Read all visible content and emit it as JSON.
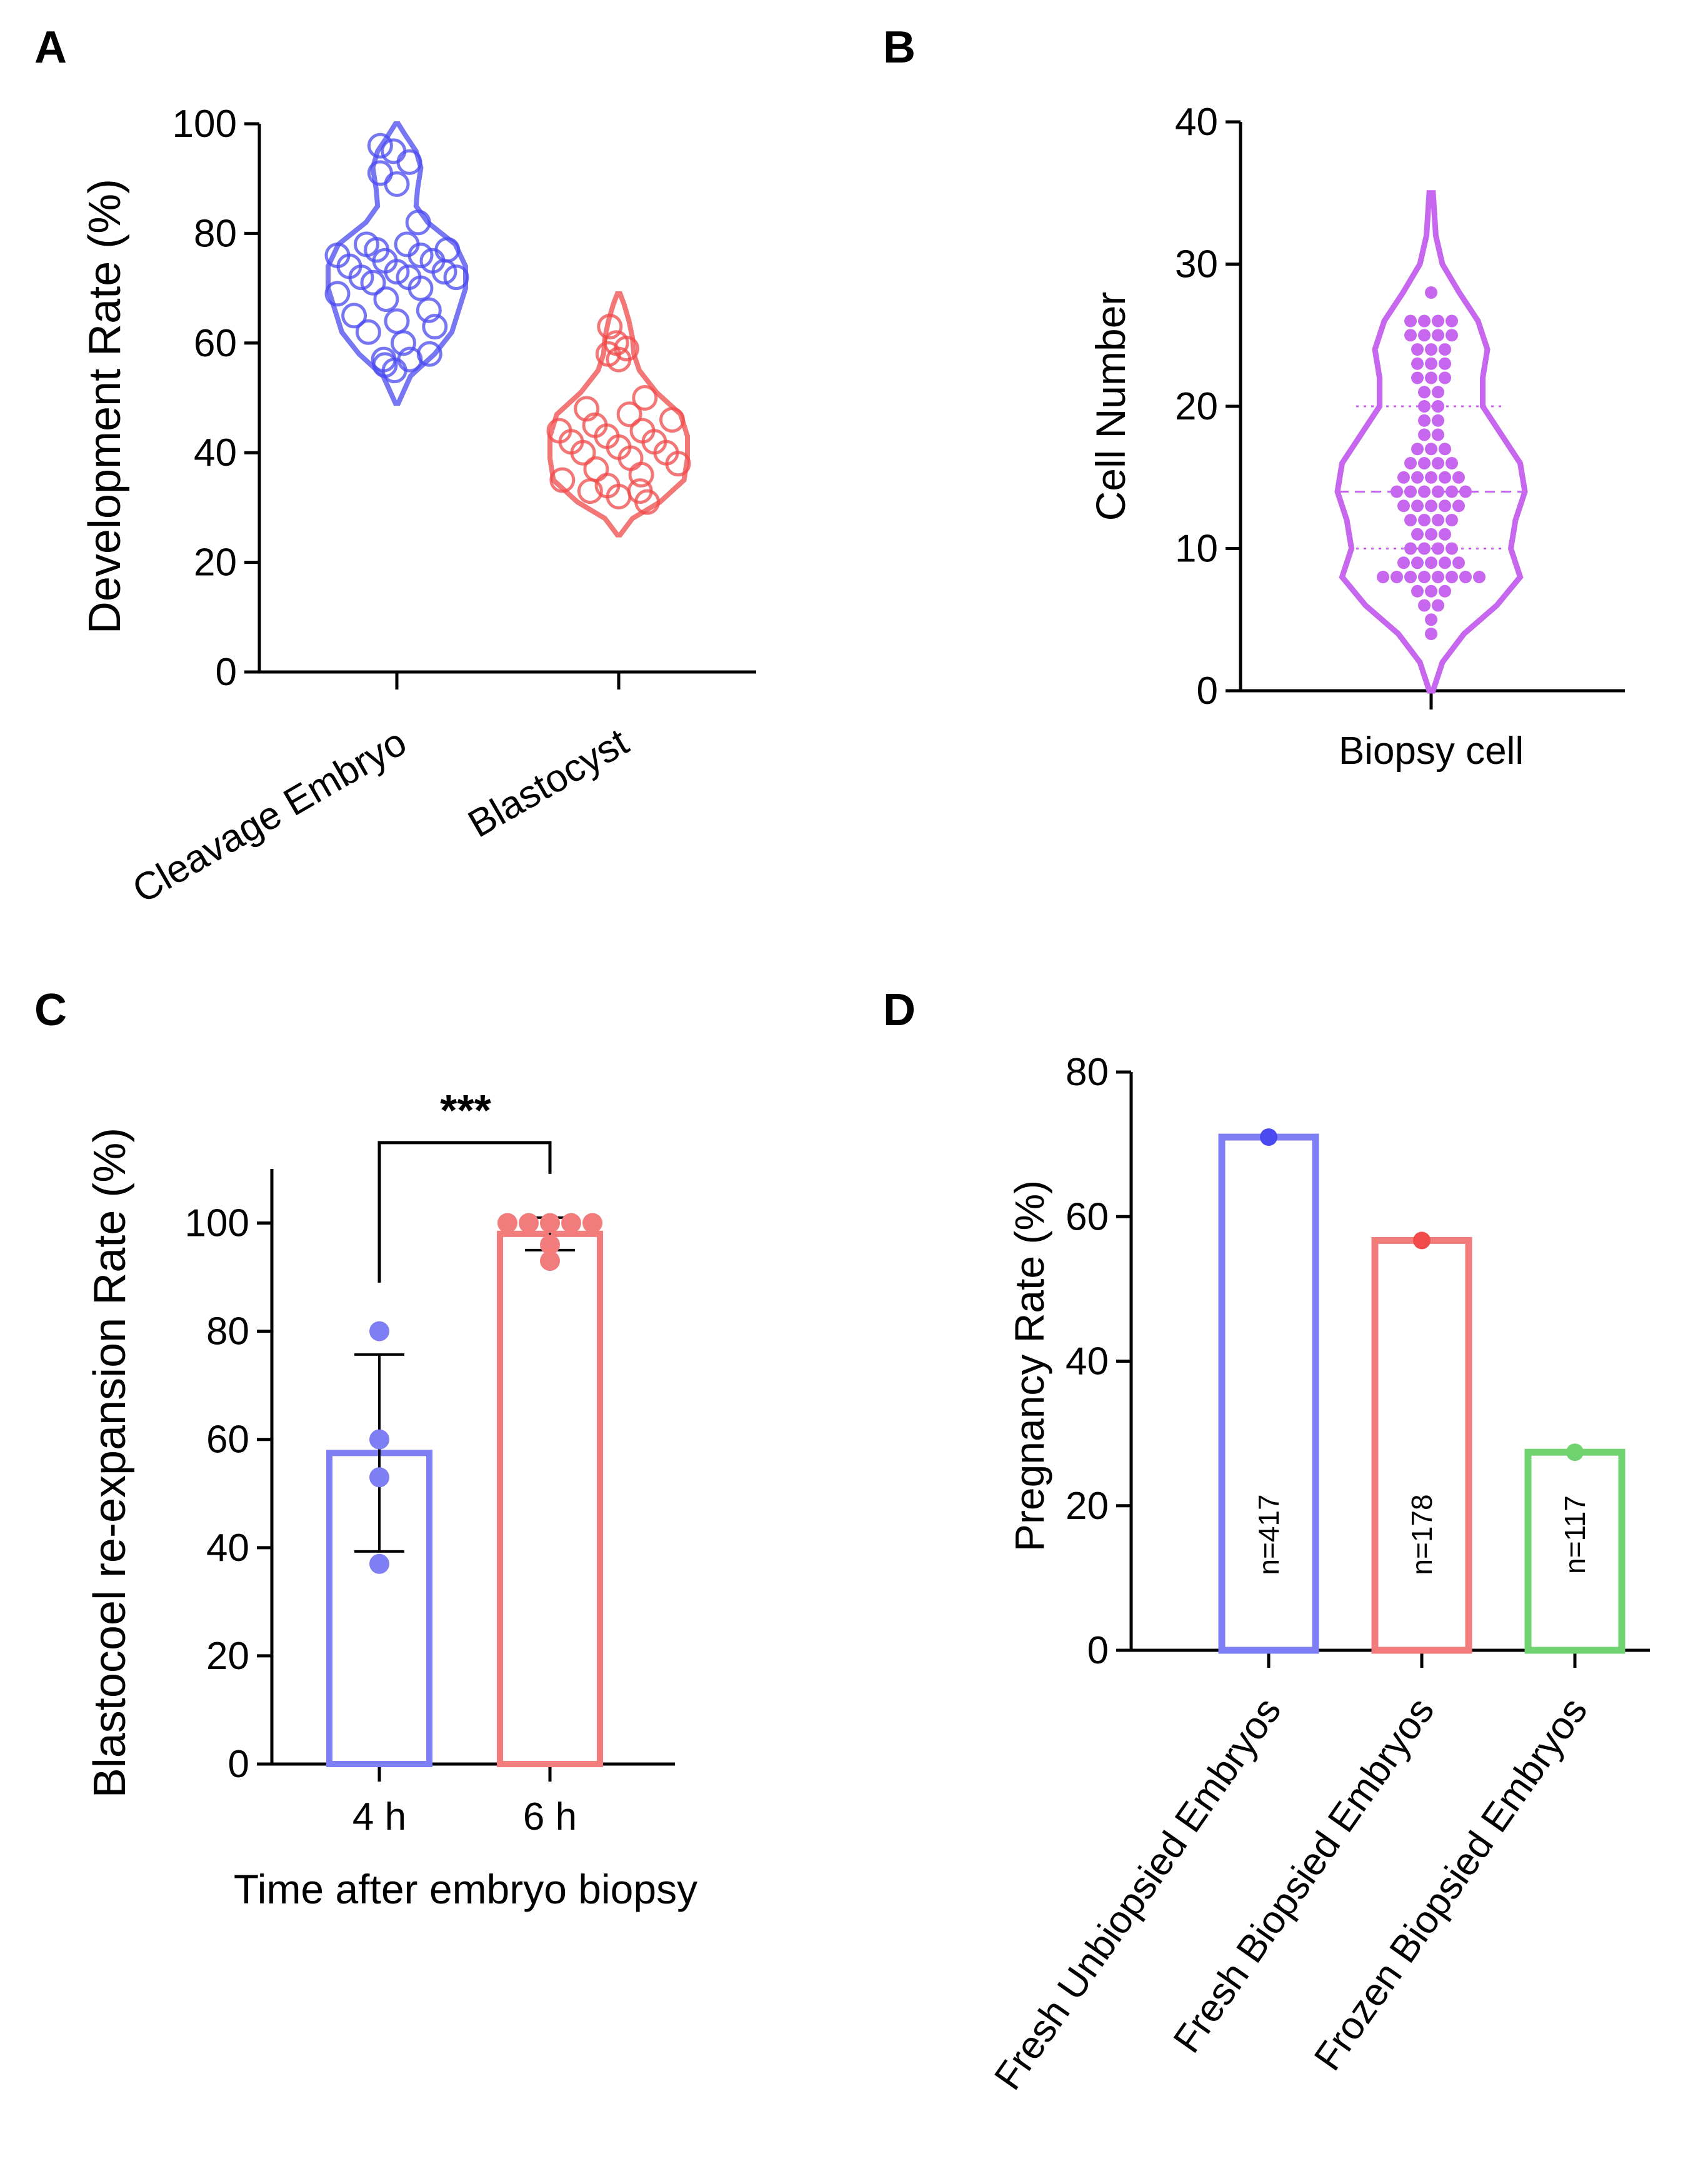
{
  "colors": {
    "blue": "#4a4af0",
    "red": "#f04a4a",
    "purple": "#c766ee",
    "bar_blue": "#7f7ff5",
    "bar_red": "#f27c7c",
    "bar_green": "#6fd46f",
    "axis": "#000000"
  },
  "chart_data": [
    {
      "panel": "A",
      "type": "violin",
      "xlabel": "",
      "ylabel": "Development Rate (%)",
      "ylim": [
        0,
        100
      ],
      "yticks": [
        "0",
        "20",
        "40",
        "60",
        "80",
        "100"
      ],
      "categories": [
        "Cleavage Embryo",
        "Blastocyst"
      ],
      "series": [
        {
          "name": "Cleavage Embryo",
          "color": "blue",
          "range": [
            49,
            100
          ],
          "profile": [
            [
              49,
              0.02
            ],
            [
              54,
              0.2
            ],
            [
              58,
              0.55
            ],
            [
              62,
              0.8
            ],
            [
              66,
              0.9
            ],
            [
              70,
              1.0
            ],
            [
              74,
              1.0
            ],
            [
              78,
              0.85
            ],
            [
              82,
              0.45
            ],
            [
              85,
              0.28
            ],
            [
              88,
              0.3
            ],
            [
              92,
              0.35
            ],
            [
              95,
              0.28
            ],
            [
              98,
              0.12
            ],
            [
              100,
              0.02
            ]
          ],
          "values": [
            96,
            95,
            93,
            91,
            89,
            82,
            78,
            78,
            77,
            77,
            76,
            76,
            75,
            75,
            74,
            73,
            73,
            72,
            72,
            72,
            71,
            70,
            69,
            68,
            66,
            65,
            64,
            63,
            62,
            60,
            58,
            57,
            57,
            56,
            55
          ]
        },
        {
          "name": "Blastocyst",
          "color": "red",
          "range": [
            25,
            69
          ],
          "profile": [
            [
              25,
              0.02
            ],
            [
              28,
              0.2
            ],
            [
              31,
              0.6
            ],
            [
              35,
              0.95
            ],
            [
              39,
              1.0
            ],
            [
              43,
              1.0
            ],
            [
              47,
              0.9
            ],
            [
              51,
              0.55
            ],
            [
              55,
              0.3
            ],
            [
              58,
              0.22
            ],
            [
              61,
              0.2
            ],
            [
              64,
              0.15
            ],
            [
              67,
              0.08
            ],
            [
              69,
              0.02
            ]
          ],
          "values": [
            63,
            60,
            59,
            58,
            57,
            50,
            48,
            47,
            46,
            45,
            44,
            44,
            43,
            42,
            42,
            41,
            40,
            40,
            39,
            38,
            37,
            36,
            35,
            34,
            33,
            33,
            32,
            31
          ]
        }
      ]
    },
    {
      "panel": "B",
      "type": "violin",
      "xlabel": "",
      "ylabel": "Cell Number",
      "ylim": [
        0,
        40
      ],
      "yticks": [
        "0",
        "10",
        "20",
        "30",
        "40"
      ],
      "categories": [
        "Biopsy cell"
      ],
      "median": 14,
      "quartiles": [
        10,
        20
      ],
      "series": [
        {
          "name": "Biopsy cell",
          "color": "purple",
          "range": [
            0,
            35
          ],
          "profile": [
            [
              0,
              0.02
            ],
            [
              2,
              0.12
            ],
            [
              4,
              0.35
            ],
            [
              6,
              0.7
            ],
            [
              8,
              0.95
            ],
            [
              10,
              0.85
            ],
            [
              12,
              0.9
            ],
            [
              14,
              1.0
            ],
            [
              16,
              0.95
            ],
            [
              18,
              0.75
            ],
            [
              20,
              0.55
            ],
            [
              22,
              0.55
            ],
            [
              24,
              0.6
            ],
            [
              26,
              0.5
            ],
            [
              28,
              0.3
            ],
            [
              30,
              0.12
            ],
            [
              32,
              0.05
            ],
            [
              35,
              0.02
            ]
          ],
          "counts": [
            [
              4,
              1
            ],
            [
              5,
              1
            ],
            [
              6,
              2
            ],
            [
              7,
              3
            ],
            [
              8,
              8
            ],
            [
              9,
              5
            ],
            [
              10,
              4
            ],
            [
              11,
              3
            ],
            [
              12,
              4
            ],
            [
              13,
              5
            ],
            [
              14,
              6
            ],
            [
              15,
              5
            ],
            [
              16,
              4
            ],
            [
              17,
              3
            ],
            [
              18,
              2
            ],
            [
              19,
              2
            ],
            [
              20,
              2
            ],
            [
              21,
              2
            ],
            [
              22,
              3
            ],
            [
              23,
              3
            ],
            [
              24,
              3
            ],
            [
              25,
              4
            ],
            [
              26,
              4
            ],
            [
              28,
              1
            ]
          ]
        }
      ]
    },
    {
      "panel": "C",
      "type": "bar",
      "xlabel": "Time after embryo biopsy",
      "ylabel": "Blastocoel re-expansion Rate (%)",
      "ylim": [
        0,
        110
      ],
      "yticks": [
        "0",
        "20",
        "40",
        "60",
        "80",
        "100"
      ],
      "categories": [
        "4 h",
        "6 h"
      ],
      "series": [
        {
          "name": "4 h",
          "color": "bar_blue",
          "mean": 57.5,
          "sd_low": 39.3,
          "sd_high": 75.7,
          "points": [
            80,
            60,
            53,
            37
          ]
        },
        {
          "name": "6 h",
          "color": "bar_red",
          "mean": 98,
          "sd_low": 95,
          "sd_high": 101,
          "points": [
            100,
            100,
            100,
            100,
            100,
            96,
            93
          ]
        }
      ],
      "significance": "***"
    },
    {
      "panel": "D",
      "type": "bar",
      "xlabel": "",
      "ylabel": "Pregnancy Rate (%)",
      "ylim": [
        0,
        80
      ],
      "yticks": [
        "0",
        "20",
        "40",
        "60",
        "80"
      ],
      "categories": [
        "Fresh Unbiopsied Embryos",
        "Fresh Biopsied Embryos",
        "Frozen Biopsied Embryos"
      ],
      "series": [
        {
          "name": "Fresh Unbiopsied Embryos",
          "color": "bar_blue",
          "dot_color": "blue",
          "value": 71,
          "n_label": "n=417"
        },
        {
          "name": "Fresh Biopsied Embryos",
          "color": "bar_red",
          "dot_color": "red",
          "value": 56.7,
          "n_label": "n=178"
        },
        {
          "name": "Frozen Biopsied Embryos",
          "color": "bar_green",
          "dot_color": "bar_green",
          "value": 27.4,
          "n_label": "n=117"
        }
      ]
    }
  ]
}
